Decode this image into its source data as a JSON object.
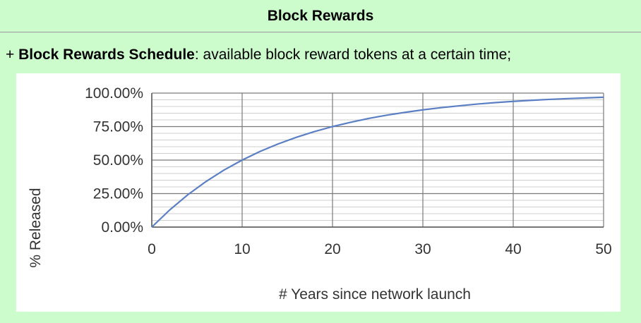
{
  "header": {
    "title": "Block Rewards"
  },
  "intro": {
    "prefix": "+ ",
    "bold": "Block Rewards Schedule",
    "rest": ": available block reward tokens at a certain time;"
  },
  "chart_data": {
    "type": "line",
    "title": "",
    "xlabel": "# Years since network launch",
    "ylabel": "% Released",
    "xlim": [
      0,
      50
    ],
    "ylim": [
      0,
      100
    ],
    "x_ticks": [
      0,
      10,
      20,
      30,
      40,
      50
    ],
    "y_ticks": [
      0,
      25,
      50,
      75,
      100
    ],
    "y_tick_labels": [
      "0.00%",
      "25.00%",
      "50.00%",
      "75.00%",
      "100.00%"
    ],
    "grid": true,
    "legend": "none",
    "series": [
      {
        "color": "#5b7fc4",
        "x": [
          0,
          2,
          4,
          6,
          8,
          10,
          12,
          14,
          16,
          18,
          20,
          22,
          24,
          26,
          28,
          30,
          32,
          34,
          36,
          38,
          40,
          42,
          44,
          46,
          48,
          50
        ],
        "values": [
          0,
          12.9,
          24.2,
          34.0,
          42.6,
          50.0,
          56.5,
          62.1,
          67.0,
          71.3,
          75.0,
          78.2,
          81.1,
          83.5,
          85.6,
          87.5,
          89.1,
          90.5,
          91.8,
          92.9,
          93.8,
          94.6,
          95.3,
          95.9,
          96.4,
          96.9
        ]
      }
    ]
  }
}
